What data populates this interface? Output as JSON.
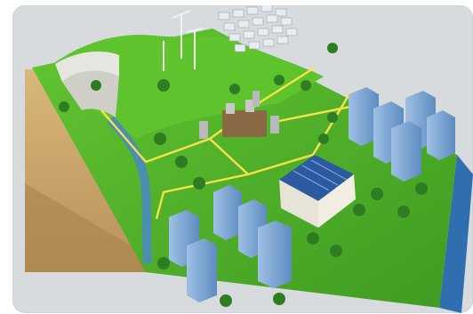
{
  "scene": {
    "subject": "isometric-smart-grid-diorama",
    "colors": {
      "background": "#d7dbde",
      "grass": "#4caf2a",
      "grass_light": "#6fd13a",
      "soil": "#c9a66b",
      "soil_dark": "#b08a52",
      "water": "#4a8fb0",
      "road_line": "#ffe44d",
      "building_glass": "#7fa9d6",
      "building_dark": "#4c78ab",
      "solar_panel": "#e9eef3",
      "tree": "#2e7d22",
      "substation": "#8a8a8a"
    }
  }
}
